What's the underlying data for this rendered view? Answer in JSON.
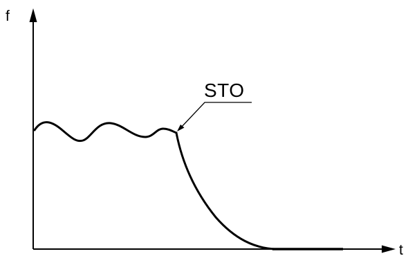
{
  "diagram": {
    "y_axis_label": "f",
    "x_axis_label": "t",
    "annotation": "STO"
  }
}
